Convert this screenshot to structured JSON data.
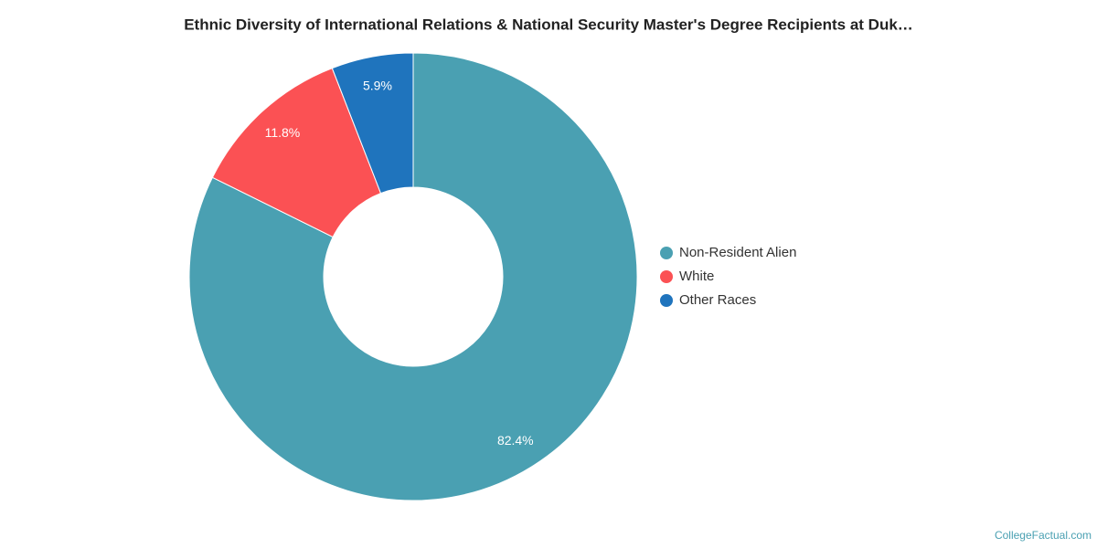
{
  "chart_data": {
    "type": "donut",
    "title": "Ethnic Diversity of International Relations & National Security Master's Degree Recipients at Duk…",
    "categories": [
      "Non-Resident Alien",
      "White",
      "Other Races"
    ],
    "values": [
      82.4,
      11.8,
      5.9
    ],
    "value_labels": [
      "82.4%",
      "11.8%",
      "5.9%"
    ],
    "colors": [
      "#4aa0b2",
      "#fb5154",
      "#1f74bd"
    ],
    "legend": "right",
    "credit": "CollegeFactual.com"
  }
}
